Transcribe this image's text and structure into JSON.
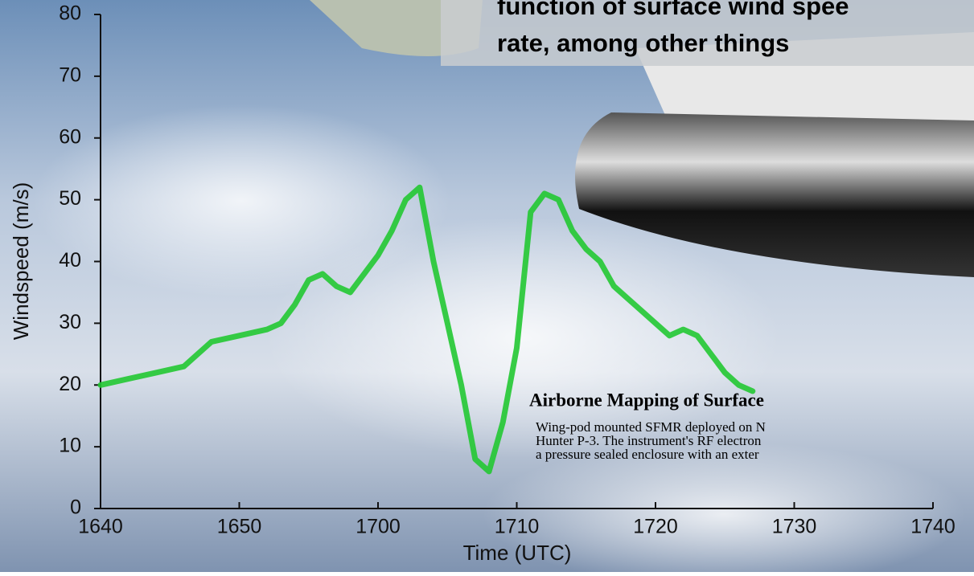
{
  "chart_data": {
    "type": "line",
    "x_label": "Time (UTC)",
    "y_label": "Windspeed (m/s)",
    "x": [
      1000,
      1002,
      1004,
      1006,
      1007,
      1008,
      1010,
      1012,
      1013,
      1014,
      1015,
      1016,
      1017,
      1018,
      1019,
      1020,
      1021,
      1022,
      1023,
      1024,
      1025,
      1026,
      1027,
      1028,
      1029,
      1030,
      1031,
      1032,
      1033,
      1034,
      1035,
      1036,
      1037,
      1038,
      1039,
      1040,
      1041,
      1042,
      1043,
      1044,
      1045,
      1046,
      1047
    ],
    "values": [
      20,
      21,
      22,
      23,
      25,
      27,
      28,
      29,
      30,
      33,
      37,
      38,
      36,
      35,
      38,
      41,
      45,
      50,
      52,
      40,
      30,
      20,
      8,
      6,
      14,
      26,
      48,
      51,
      50,
      45,
      42,
      40,
      36,
      34,
      32,
      30,
      28,
      29,
      28,
      25,
      22,
      20,
      19
    ],
    "color": "#22c832",
    "xlim": [
      1000,
      1060
    ],
    "xticks": [
      {
        "value": 1000,
        "label": "1640"
      },
      {
        "value": 1010,
        "label": "1650"
      },
      {
        "value": 1020,
        "label": "1700"
      },
      {
        "value": 1030,
        "label": "1710"
      },
      {
        "value": 1040,
        "label": "1720"
      },
      {
        "value": 1050,
        "label": "1730"
      },
      {
        "value": 1060,
        "label": "1740"
      }
    ],
    "ylim": [
      0,
      80
    ],
    "yticks": [
      0,
      10,
      20,
      30,
      40,
      50,
      60,
      70,
      80
    ]
  },
  "slide": {
    "headline": [
      "function of surface wind spee",
      "rate, among other things"
    ],
    "caption_title": "Airborne Mapping of Surface",
    "caption_lines": [
      "Wing-pod mounted SFMR deployed on N",
      "Hunter P-3. The instrument's RF electron",
      "a pressure sealed enclosure with an exter"
    ]
  }
}
